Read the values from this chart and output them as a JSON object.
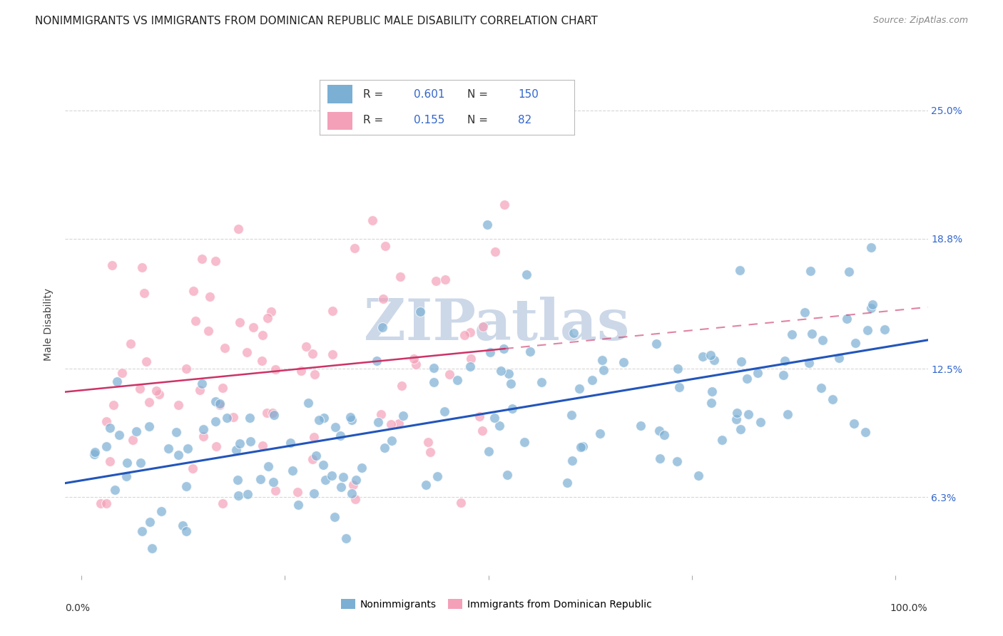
{
  "title": "NONIMMIGRANTS VS IMMIGRANTS FROM DOMINICAN REPUBLIC MALE DISABILITY CORRELATION CHART",
  "source": "Source: ZipAtlas.com",
  "ylabel": "Male Disability",
  "ytick_labels": [
    "6.3%",
    "12.5%",
    "18.8%",
    "25.0%"
  ],
  "ytick_values": [
    0.063,
    0.125,
    0.188,
    0.25
  ],
  "legend_R_nonimm": "0.601",
  "legend_N_nonimm": "150",
  "legend_R_immig": "0.155",
  "legend_N_immig": "82",
  "label_nonimm": "Nonimmigrants",
  "label_immig": "Immigrants from Dominican Republic",
  "scatter_color_nonimm": "#7bafd4",
  "scatter_color_immig": "#f4a0b8",
  "line_color_nonimm": "#2255bb",
  "line_color_immig": "#cc3366",
  "bg_color": "#ffffff",
  "grid_color": "#cccccc",
  "watermark_text": "ZIPatlas",
  "watermark_color": "#ccd8e8",
  "title_fontsize": 11,
  "axis_label_fontsize": 10,
  "tick_fontsize": 10,
  "source_fontsize": 9,
  "legend_fontsize": 11
}
